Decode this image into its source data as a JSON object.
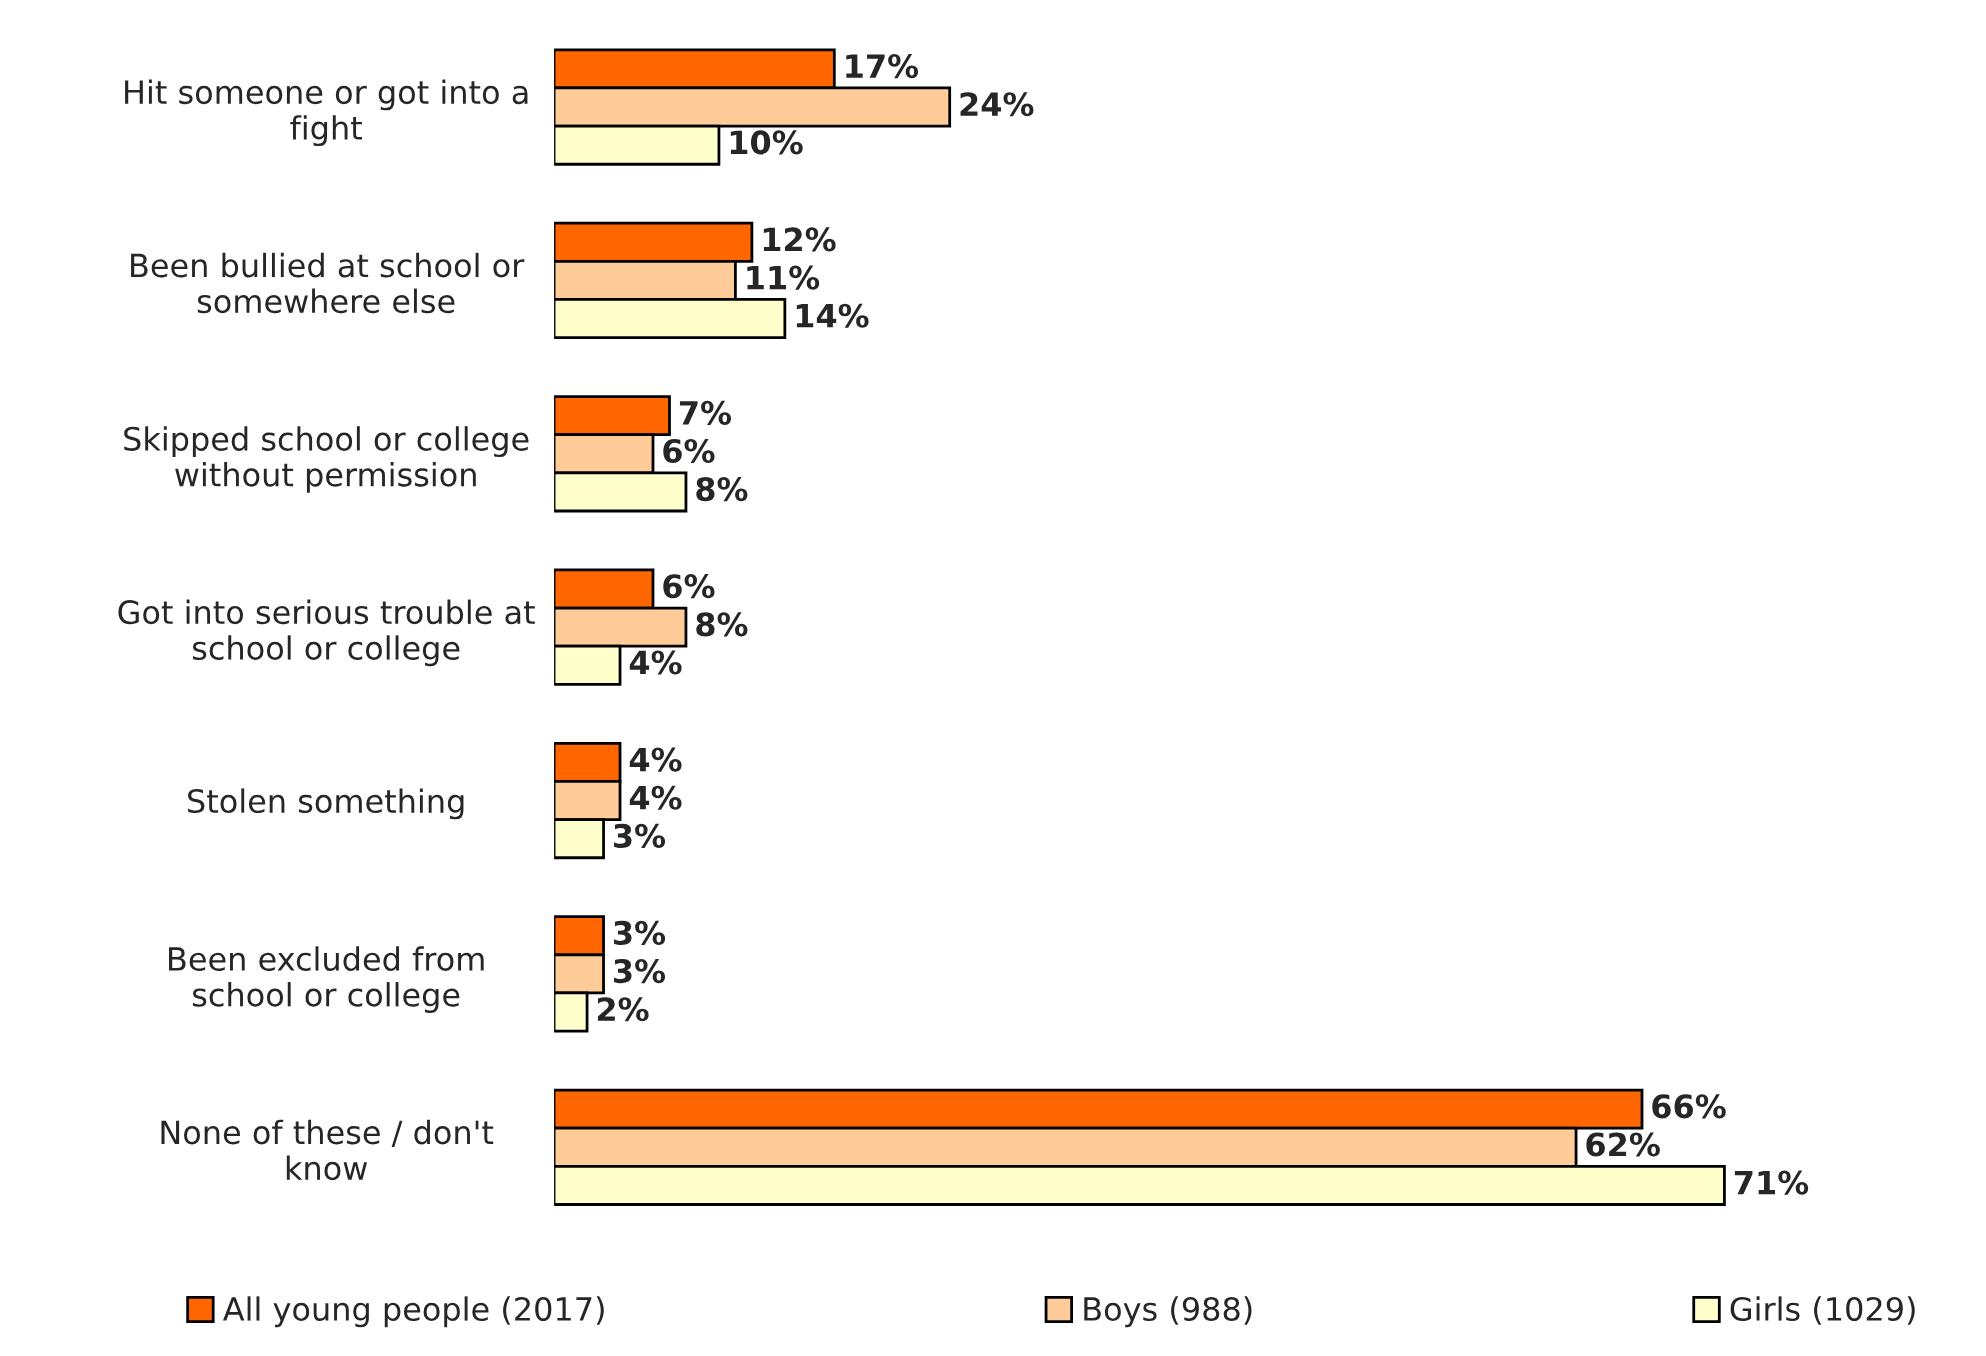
{
  "chart_data": {
    "type": "bar",
    "orientation": "horizontal",
    "legend": "bottom",
    "categories": [
      "Hit someone or got into a\nfight",
      "Been bullied at school or\nsomewhere else",
      "Skipped school or college\nwithout permission",
      "Got into serious trouble at\nschool or college",
      "Stolen something",
      "Been excluded from\nschool or college",
      "None of these / don't\nknow"
    ],
    "series": [
      {
        "name": "All young people (2017)",
        "color": "#ff6600",
        "values": [
          17,
          12,
          7,
          6,
          4,
          3,
          66
        ],
        "value_labels": [
          "17%",
          "12%",
          "7%",
          "6%",
          "4%",
          "3%",
          "66%"
        ]
      },
      {
        "name": "Boys (988)",
        "color": "#ffcc99",
        "values": [
          24,
          11,
          6,
          8,
          4,
          3,
          62
        ],
        "value_labels": [
          "24%",
          "11%",
          "6%",
          "8%",
          "4%",
          "3%",
          "62%"
        ]
      },
      {
        "name": "Girls (1029)",
        "color": "#ffffcc",
        "values": [
          10,
          14,
          8,
          4,
          3,
          2,
          71
        ],
        "value_labels": [
          "10%",
          "14%",
          "8%",
          "4%",
          "3%",
          "2%",
          "71%"
        ]
      }
    ]
  }
}
